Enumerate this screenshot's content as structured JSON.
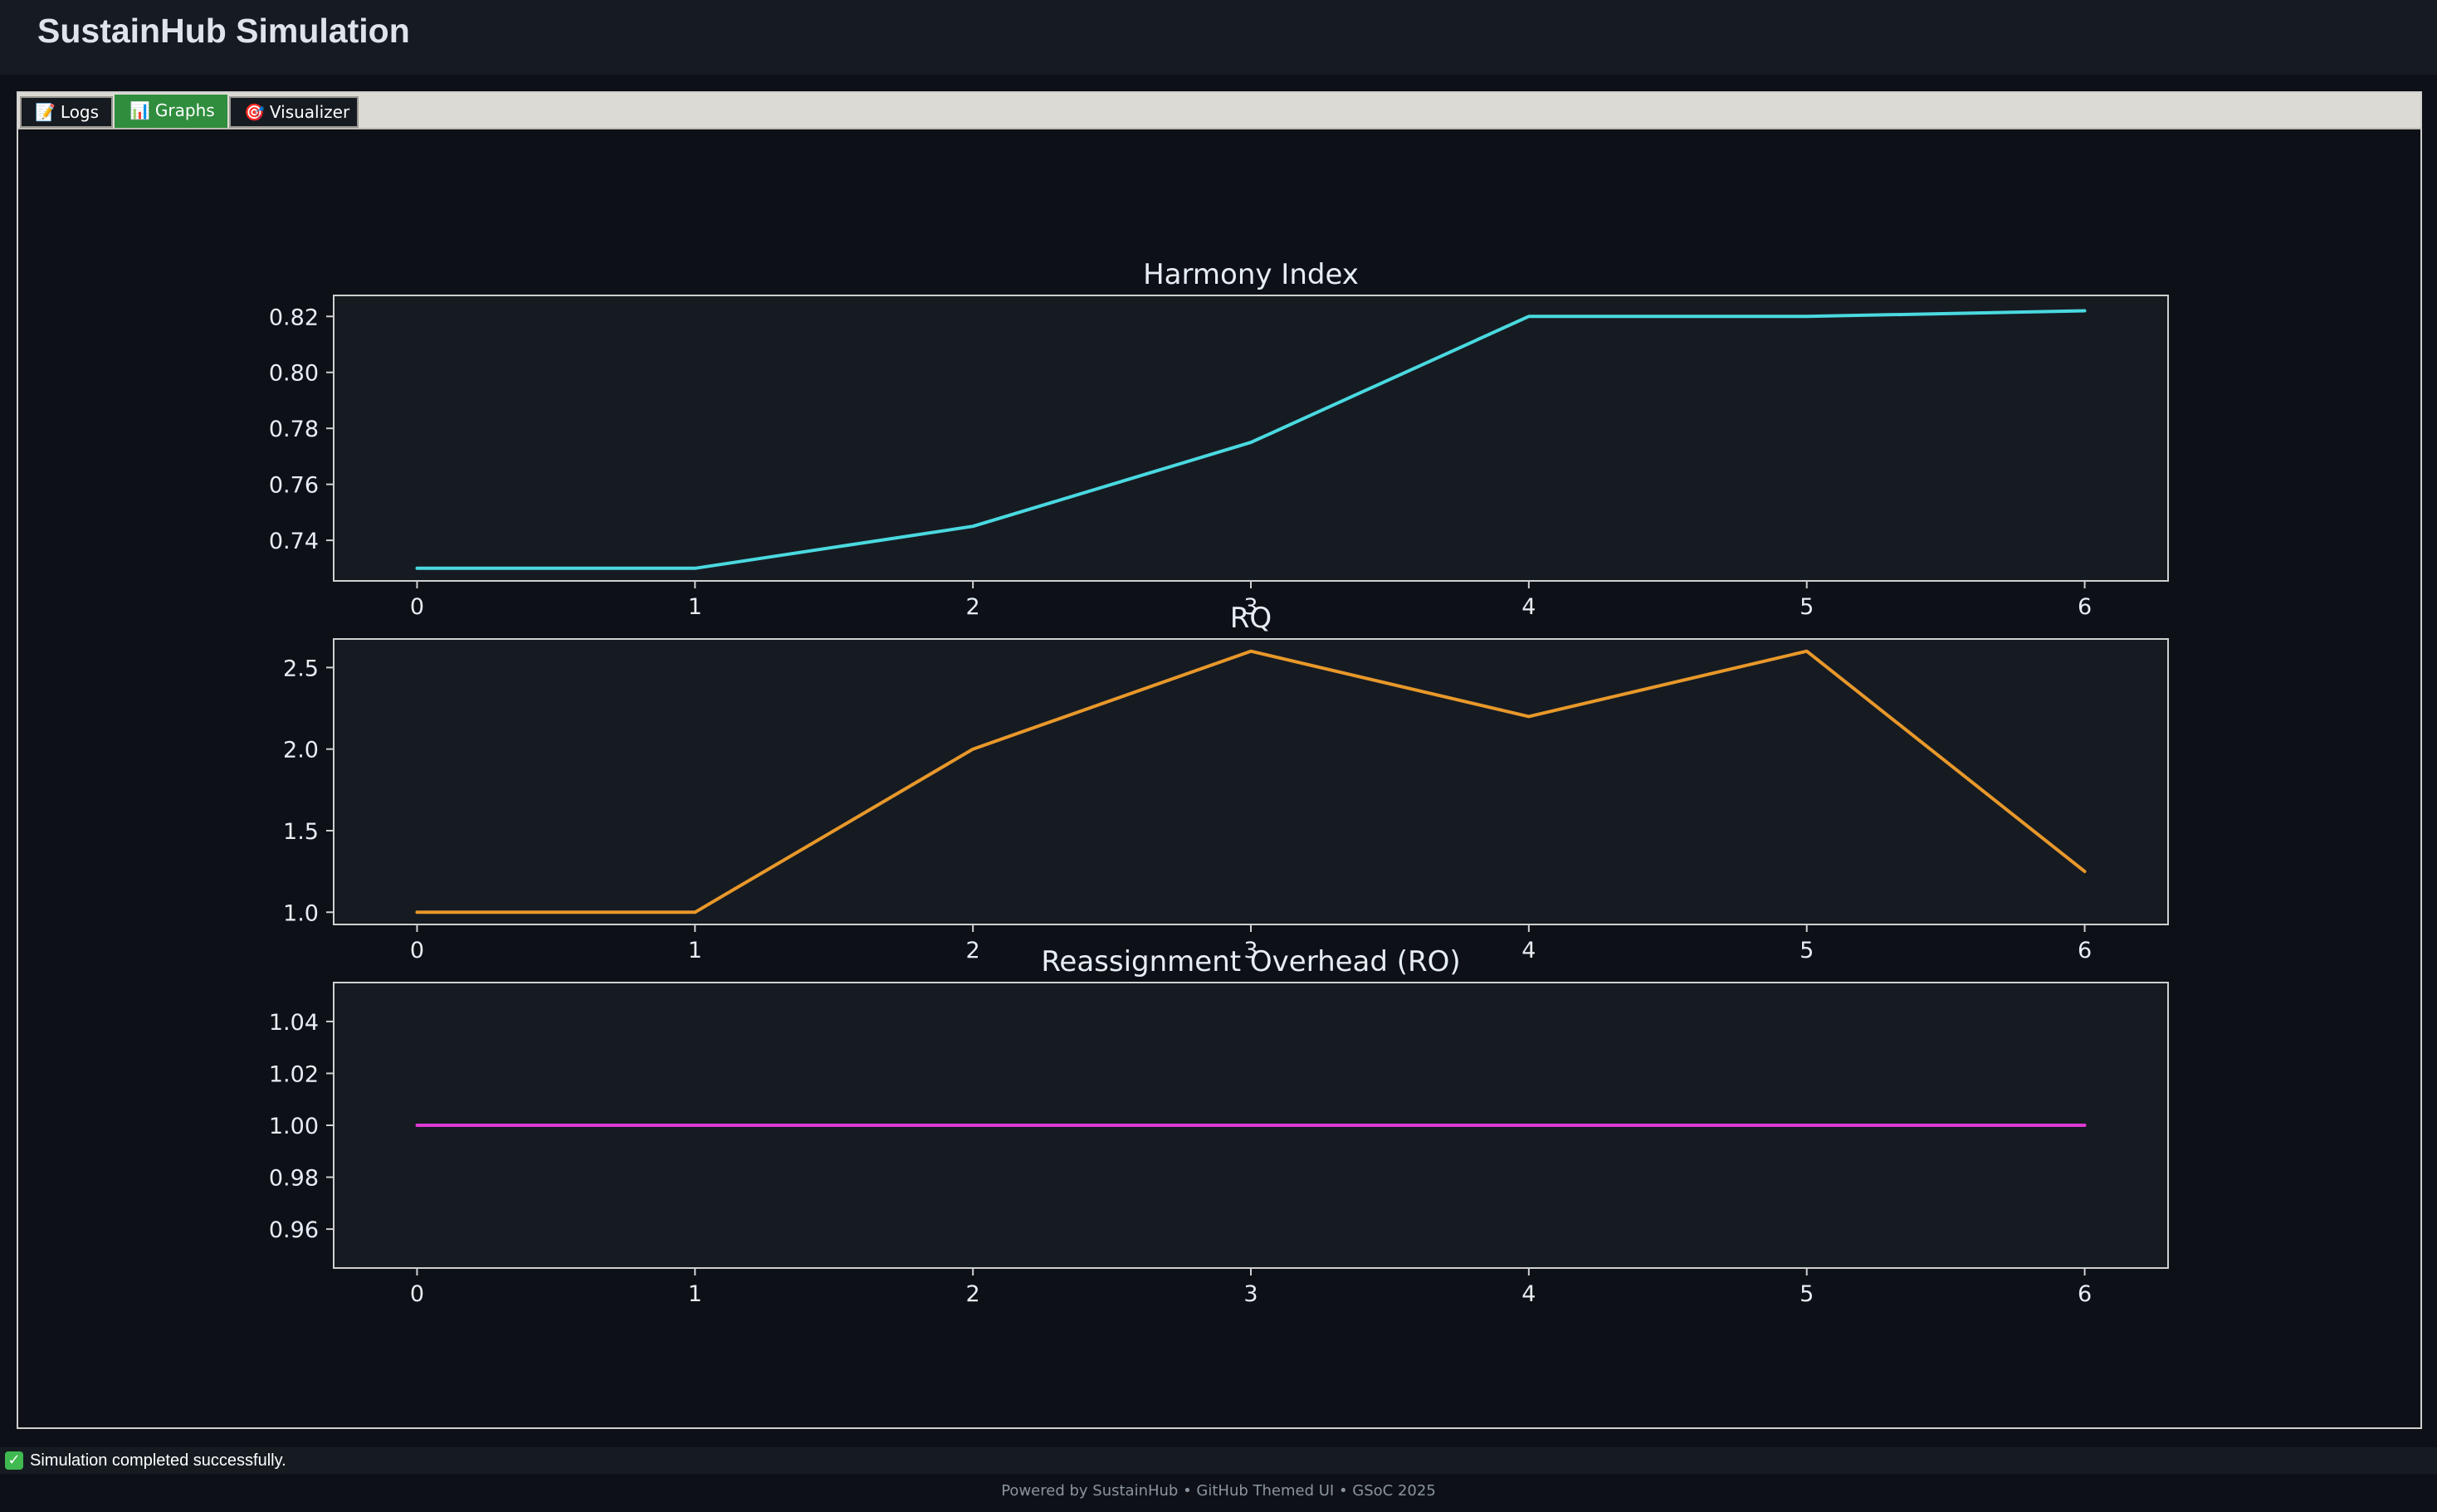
{
  "app": {
    "title": "SustainHub Simulation"
  },
  "tabs": [
    {
      "icon": "memo-icon",
      "glyph": "📝",
      "label": "Logs"
    },
    {
      "icon": "bar-chart-icon",
      "glyph": "📊",
      "label": "Graphs"
    },
    {
      "icon": "target-icon",
      "glyph": "🎯",
      "label": "Visualizer"
    }
  ],
  "status": {
    "icon": "check-icon",
    "glyph": "✓",
    "text": "Simulation completed successfully."
  },
  "footer": {
    "text": "Powered by SustainHub • GitHub Themed UI • GSoC 2025"
  },
  "colors": {
    "figure_bg": "#0d1117",
    "axes_bg": "#161b22",
    "axes_edge": "#d0d0d0",
    "text": "#e6edf3",
    "harmony": "#4ad9e0",
    "rq": "#e8982a",
    "ro": "#e03ad6",
    "active_tab": "#2f8d3d"
  },
  "chart_data": [
    {
      "type": "line",
      "title": "Harmony Index",
      "x": [
        0,
        1,
        2,
        3,
        4,
        5,
        6
      ],
      "series": [
        {
          "values": [
            0.73,
            0.73,
            0.745,
            0.775,
            0.82,
            0.82,
            0.822
          ]
        }
      ],
      "xlim": [
        -0.3,
        6.3
      ],
      "ylim": [
        0.7255,
        0.8275
      ],
      "xticks": [
        "0",
        "1",
        "2",
        "3",
        "4",
        "5",
        "6"
      ],
      "yticks": [
        0.74,
        0.76,
        0.78,
        0.8,
        0.82
      ],
      "ytick_labels": [
        "0.74",
        "0.76",
        "0.78",
        "0.80",
        "0.82"
      ],
      "color_key": "harmony",
      "grid": false
    },
    {
      "type": "line",
      "title": "RQ",
      "x": [
        0,
        1,
        2,
        3,
        4,
        5,
        6
      ],
      "series": [
        {
          "values": [
            1.0,
            1.0,
            2.0,
            2.6,
            2.2,
            2.6,
            1.25
          ]
        }
      ],
      "xlim": [
        -0.3,
        6.3
      ],
      "ylim": [
        0.925,
        2.675
      ],
      "xticks": [
        "0",
        "1",
        "2",
        "3",
        "4",
        "5",
        "6"
      ],
      "yticks": [
        1.0,
        1.5,
        2.0,
        2.5
      ],
      "ytick_labels": [
        "1.0",
        "1.5",
        "2.0",
        "2.5"
      ],
      "color_key": "rq",
      "grid": false
    },
    {
      "type": "line",
      "title": "Reassignment Overhead (RO)",
      "x": [
        0,
        1,
        2,
        3,
        4,
        5,
        6
      ],
      "series": [
        {
          "values": [
            1.0,
            1.0,
            1.0,
            1.0,
            1.0,
            1.0,
            1.0
          ]
        }
      ],
      "xlim": [
        -0.3,
        6.3
      ],
      "ylim": [
        0.945,
        1.055
      ],
      "xticks": [
        "0",
        "1",
        "2",
        "3",
        "4",
        "5",
        "6"
      ],
      "yticks": [
        0.96,
        0.98,
        1.0,
        1.02,
        1.04
      ],
      "ytick_labels": [
        "0.96",
        "0.98",
        "1.00",
        "1.02",
        "1.04"
      ],
      "color_key": "ro",
      "grid": false
    }
  ]
}
